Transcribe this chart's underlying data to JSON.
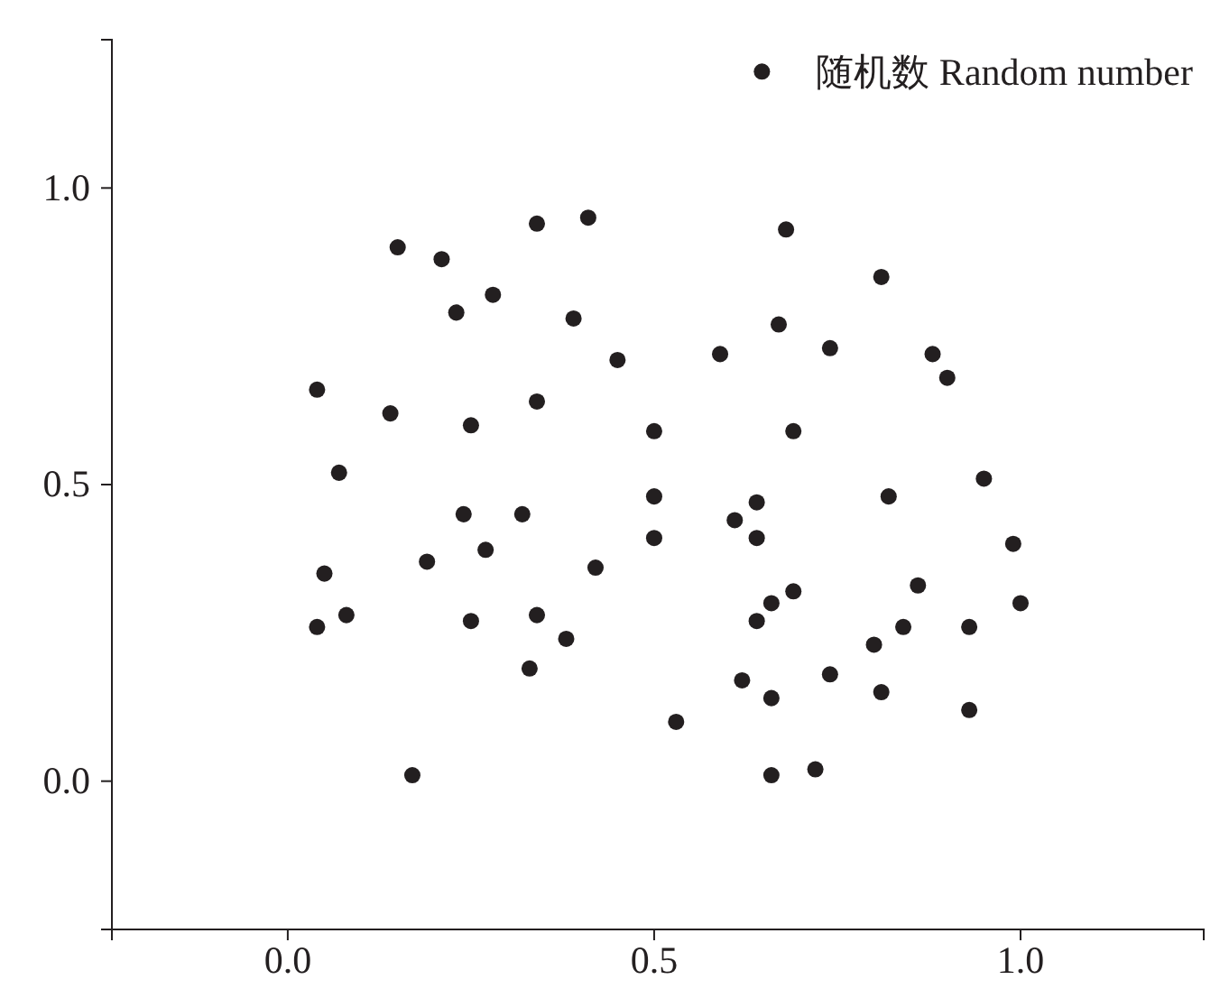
{
  "chart_data": {
    "type": "scatter",
    "xlim": [
      -0.24,
      1.25
    ],
    "ylim": [
      -0.25,
      1.25
    ],
    "xticks": [
      {
        "value": 0,
        "label": "0.0"
      },
      0.5,
      {
        "value": 1,
        "label": "1.0"
      }
    ],
    "yticks": [
      {
        "value": 0,
        "label": "0.0"
      },
      0.5,
      {
        "value": 1,
        "label": "1.0"
      }
    ],
    "marker": "circle",
    "legend": "top right",
    "series": [
      {
        "name": "随机数 Random number",
        "color": "#231f20",
        "x": [
          0.15,
          0.21,
          0.34,
          0.41,
          0.68,
          0.81,
          0.28,
          0.23,
          0.39,
          0.45,
          0.59,
          0.67,
          0.74,
          0.88,
          0.9,
          0.04,
          0.14,
          0.34,
          0.25,
          0.5,
          0.69,
          0.07,
          0.95,
          0.5,
          0.82,
          0.64,
          0.24,
          0.32,
          0.61,
          0.5,
          0.64,
          0.99,
          0.05,
          0.19,
          0.27,
          0.42,
          0.86,
          0.69,
          0.66,
          0.64,
          0.08,
          0.25,
          0.34,
          0.04,
          0.38,
          1.0,
          0.93,
          0.84,
          0.8,
          0.33,
          0.74,
          0.62,
          0.66,
          0.81,
          0.93,
          0.53,
          0.17,
          0.72,
          0.66
        ],
        "values": [
          0.9,
          0.88,
          0.94,
          0.95,
          0.93,
          0.85,
          0.82,
          0.79,
          0.78,
          0.71,
          0.72,
          0.77,
          0.73,
          0.72,
          0.68,
          0.66,
          0.62,
          0.64,
          0.6,
          0.59,
          0.59,
          0.52,
          0.51,
          0.48,
          0.48,
          0.47,
          0.45,
          0.45,
          0.44,
          0.41,
          0.41,
          0.4,
          0.35,
          0.37,
          0.39,
          0.36,
          0.33,
          0.32,
          0.3,
          0.27,
          0.28,
          0.27,
          0.28,
          0.26,
          0.24,
          0.3,
          0.26,
          0.26,
          0.23,
          0.19,
          0.18,
          0.17,
          0.14,
          0.15,
          0.12,
          0.1,
          0.01,
          0.02,
          0.01
        ]
      }
    ]
  }
}
